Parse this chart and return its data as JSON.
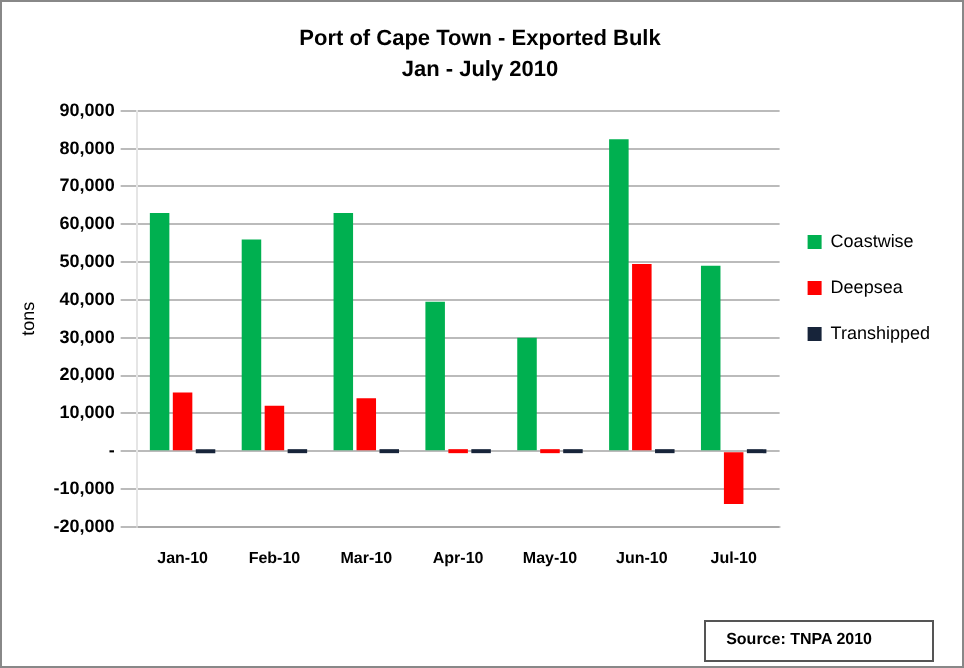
{
  "chart_data": {
    "type": "bar",
    "title": "Port of Cape Town - Exported Bulk",
    "subtitle": "Jan - July 2010",
    "ylabel": "tons",
    "categories": [
      "Jan-10",
      "Feb-10",
      "Mar-10",
      "Apr-10",
      "May-10",
      "Jun-10",
      "Jul-10"
    ],
    "series": [
      {
        "name": "Coastwise",
        "color": "#00b050",
        "values": [
          63000,
          56000,
          63000,
          39500,
          30000,
          82500,
          49000
        ]
      },
      {
        "name": "Deepsea",
        "color": "#ff0000",
        "values": [
          15500,
          12000,
          14000,
          0,
          0,
          49500,
          -14000
        ]
      },
      {
        "name": "Transhipped",
        "color": "#17243a",
        "values": [
          0,
          0,
          0,
          0,
          0,
          0,
          0
        ]
      }
    ],
    "ylim": [
      -20000,
      90000
    ],
    "yticks": [
      {
        "value": -20000,
        "label": "-20,000"
      },
      {
        "value": -10000,
        "label": "-10,000"
      },
      {
        "value": 0,
        "label": "-"
      },
      {
        "value": 10000,
        "label": "10,000"
      },
      {
        "value": 20000,
        "label": "20,000"
      },
      {
        "value": 30000,
        "label": "30,000"
      },
      {
        "value": 40000,
        "label": "40,000"
      },
      {
        "value": 50000,
        "label": "50,000"
      },
      {
        "value": 60000,
        "label": "60,000"
      },
      {
        "value": 70000,
        "label": "70,000"
      },
      {
        "value": 80000,
        "label": "80,000"
      },
      {
        "value": 90000,
        "label": "90,000"
      }
    ],
    "grid": "y",
    "legend": "right",
    "annotations": [
      "Source:  TNPA 2010"
    ]
  }
}
